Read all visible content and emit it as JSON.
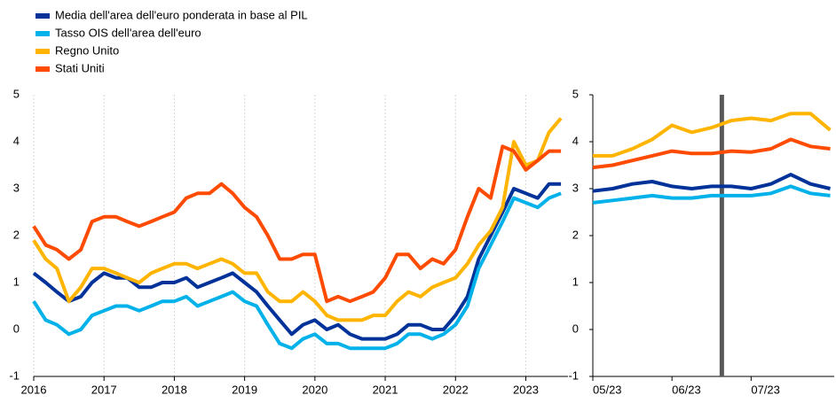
{
  "chart_data": [
    {
      "type": "line",
      "x": [
        2016,
        2016.17,
        2016.33,
        2016.5,
        2016.67,
        2016.83,
        2017,
        2017.17,
        2017.33,
        2017.5,
        2017.67,
        2017.83,
        2018,
        2018.17,
        2018.33,
        2018.5,
        2018.67,
        2018.83,
        2019,
        2019.17,
        2019.33,
        2019.5,
        2019.67,
        2019.83,
        2020,
        2020.17,
        2020.33,
        2020.5,
        2020.67,
        2020.83,
        2021,
        2021.17,
        2021.33,
        2021.5,
        2021.67,
        2021.83,
        2022,
        2022.17,
        2022.33,
        2022.5,
        2022.67,
        2022.83,
        2023,
        2023.17,
        2023.33,
        2023.5
      ],
      "series": [
        {
          "name": "Media dell'area dell'euro ponderata in base al PIL",
          "color": "#003299",
          "values": [
            1.2,
            1.0,
            0.8,
            0.6,
            0.7,
            1.0,
            1.2,
            1.1,
            1.1,
            0.9,
            0.9,
            1.0,
            1.0,
            1.1,
            0.9,
            1.0,
            1.1,
            1.2,
            1.0,
            0.8,
            0.5,
            0.2,
            -0.1,
            0.1,
            0.2,
            0.0,
            0.1,
            -0.1,
            -0.2,
            -0.2,
            -0.2,
            -0.1,
            0.1,
            0.1,
            0.0,
            0.0,
            0.3,
            0.7,
            1.5,
            2.0,
            2.5,
            3.0,
            2.9,
            2.8,
            3.1,
            3.1
          ]
        },
        {
          "name": "Tasso OIS dell'area dell'euro",
          "color": "#00b1ea",
          "values": [
            0.6,
            0.2,
            0.1,
            -0.1,
            0.0,
            0.3,
            0.4,
            0.5,
            0.5,
            0.4,
            0.5,
            0.6,
            0.6,
            0.7,
            0.5,
            0.6,
            0.7,
            0.8,
            0.6,
            0.5,
            0.1,
            -0.3,
            -0.4,
            -0.2,
            -0.1,
            -0.3,
            -0.3,
            -0.4,
            -0.4,
            -0.4,
            -0.4,
            -0.3,
            -0.1,
            -0.1,
            -0.2,
            -0.1,
            0.1,
            0.5,
            1.3,
            1.8,
            2.3,
            2.8,
            2.7,
            2.6,
            2.8,
            2.9
          ]
        },
        {
          "name": "Regno Unito",
          "color": "#ffb400",
          "values": [
            1.9,
            1.5,
            1.3,
            0.6,
            0.9,
            1.3,
            1.3,
            1.2,
            1.1,
            1.0,
            1.2,
            1.3,
            1.4,
            1.4,
            1.3,
            1.4,
            1.5,
            1.4,
            1.2,
            1.2,
            0.8,
            0.6,
            0.6,
            0.8,
            0.6,
            0.3,
            0.2,
            0.2,
            0.2,
            0.3,
            0.3,
            0.6,
            0.8,
            0.7,
            0.9,
            1.0,
            1.1,
            1.4,
            1.8,
            2.1,
            2.6,
            4.0,
            3.5,
            3.6,
            4.2,
            4.5
          ]
        },
        {
          "name": "Stati Uniti",
          "color": "#ff4b00",
          "values": [
            2.2,
            1.8,
            1.7,
            1.5,
            1.7,
            2.3,
            2.4,
            2.4,
            2.3,
            2.2,
            2.3,
            2.4,
            2.5,
            2.8,
            2.9,
            2.9,
            3.1,
            2.9,
            2.6,
            2.4,
            2.0,
            1.5,
            1.5,
            1.6,
            1.6,
            0.6,
            0.7,
            0.6,
            0.7,
            0.8,
            1.1,
            1.6,
            1.6,
            1.3,
            1.5,
            1.4,
            1.7,
            2.4,
            3.0,
            2.8,
            3.9,
            3.8,
            3.4,
            3.6,
            3.8,
            3.8
          ]
        }
      ],
      "xlim": [
        2016,
        2023.6
      ],
      "xticks": [
        2016,
        2017,
        2018,
        2019,
        2020,
        2021,
        2022,
        2023
      ],
      "ylim": [
        -1,
        5
      ],
      "yticks": [
        -1,
        0,
        1,
        2,
        3,
        4,
        5
      ],
      "grid": true
    },
    {
      "type": "line",
      "x": [
        5,
        5.25,
        5.5,
        5.75,
        6,
        6.25,
        6.5,
        6.75,
        7,
        7.25,
        7.5,
        7.75,
        8
      ],
      "series": [
        {
          "color": "#003299",
          "values": [
            2.95,
            3.0,
            3.1,
            3.15,
            3.05,
            3.0,
            3.05,
            3.05,
            3.0,
            3.1,
            3.3,
            3.1,
            3.0
          ]
        },
        {
          "color": "#00b1ea",
          "values": [
            2.7,
            2.75,
            2.8,
            2.85,
            2.8,
            2.8,
            2.85,
            2.85,
            2.85,
            2.9,
            3.05,
            2.9,
            2.85
          ]
        },
        {
          "color": "#ffb400",
          "values": [
            3.7,
            3.7,
            3.85,
            4.05,
            4.35,
            4.2,
            4.3,
            4.45,
            4.5,
            4.45,
            4.6,
            4.6,
            4.25
          ]
        },
        {
          "color": "#ff4b00",
          "values": [
            3.45,
            3.5,
            3.6,
            3.7,
            3.8,
            3.75,
            3.75,
            3.8,
            3.78,
            3.85,
            4.05,
            3.9,
            3.85
          ]
        }
      ],
      "xlim": [
        5,
        8.05
      ],
      "xticks": [
        {
          "value": 5,
          "label": "05/23"
        },
        {
          "value": 6,
          "label": "06/23"
        },
        {
          "value": 7,
          "label": "07/23"
        }
      ],
      "ylim": [
        -1,
        5
      ],
      "yticks": [
        -1,
        0,
        1,
        2,
        3,
        4,
        5
      ],
      "grid": false,
      "vline": 6.63,
      "vline_color": "#595959"
    }
  ]
}
